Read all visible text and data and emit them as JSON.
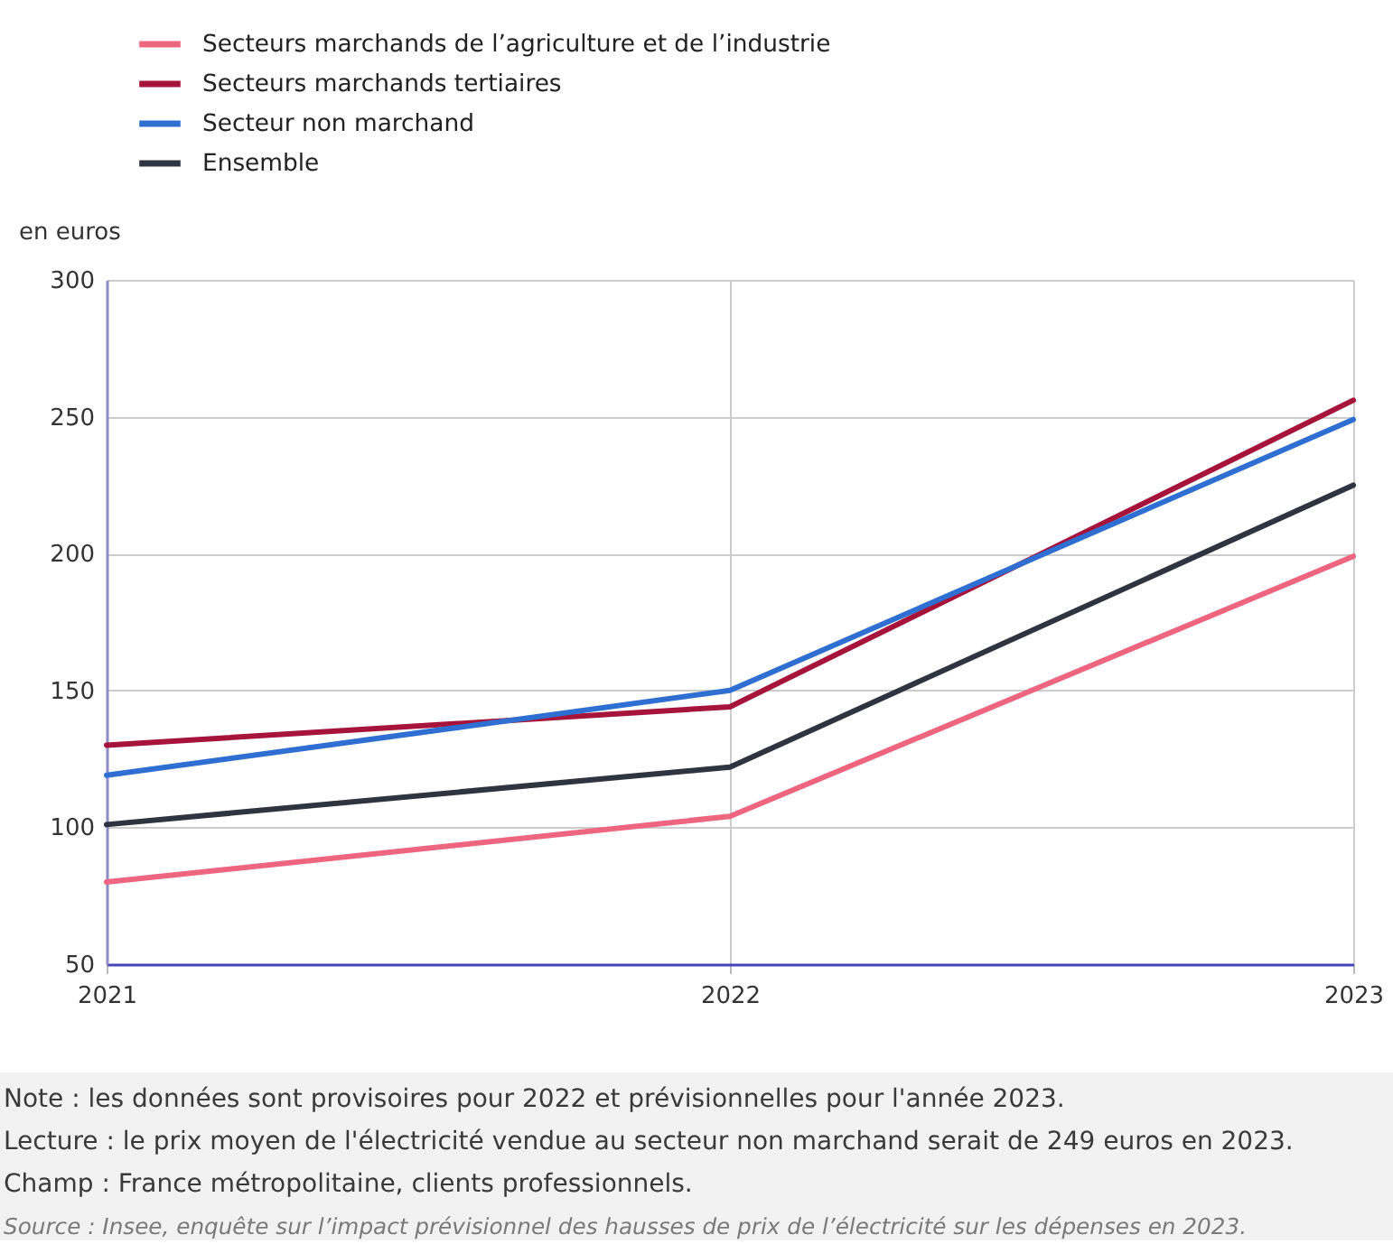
{
  "chart_data": {
    "type": "line",
    "ylabel": "en euros",
    "categories": [
      "2021",
      "2022",
      "2023"
    ],
    "ylim": [
      50,
      300
    ],
    "yticks": [
      50,
      100,
      150,
      200,
      250,
      300
    ],
    "grid": true,
    "legend": "top left",
    "line_style": "solid",
    "series": [
      {
        "name": "Secteurs marchands de l’agriculture et de l’industrie",
        "color": "#ee6580",
        "values": [
          80,
          104,
          199
        ]
      },
      {
        "name": "Secteurs marchands tertiaires",
        "color": "#a6133b",
        "values": [
          130,
          144,
          256
        ]
      },
      {
        "name": "Secteur non marchand",
        "color": "#2f6fd1",
        "values": [
          119,
          150,
          249
        ]
      },
      {
        "name": "Ensemble",
        "color": "#2e3440",
        "values": [
          101,
          122,
          225
        ]
      }
    ],
    "annotations": [
      "Note : les données sont provisoires pour 2022 et prévisionnelles pour l'année 2023.",
      "Lecture : le prix moyen de l'électricité vendue au secteur non marchand serait de 249 euros en 2023.",
      "Champ : France métropolitaine, clients professionnels.",
      "Source : Insee, enquête sur l’impact prévisionnel des hausses de prix de l’électricité sur les dépenses en 2023."
    ]
  }
}
